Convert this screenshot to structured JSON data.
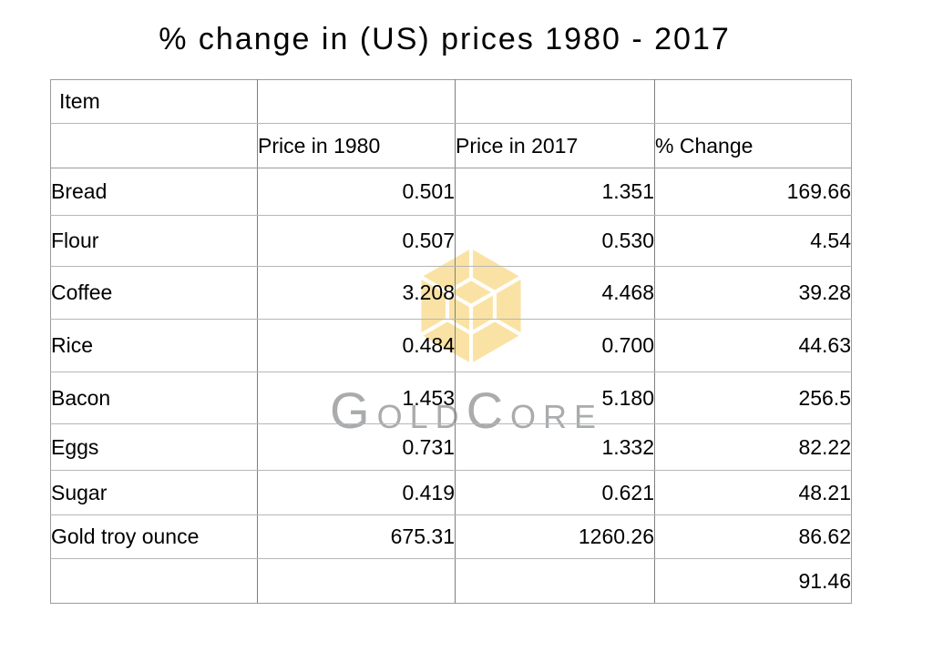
{
  "title": "% change in (US) prices 1980 - 2017",
  "watermark": {
    "brand": "GoldCore",
    "brand_seg_1": "G",
    "brand_seg_2": "OLD",
    "brand_seg_3": "C",
    "brand_seg_4": "ORE",
    "logo_gold_color": "#FAE2A4",
    "logo_line_color": "#FFFFFF",
    "brand_text_color": "#A9ABAD"
  },
  "chart_data": {
    "type": "table",
    "title": "% change in (US) prices 1980 - 2017",
    "header_row_1": [
      "Item",
      "",
      "",
      ""
    ],
    "header_row_2": [
      "",
      "Price in 1980",
      "Price in 2017",
      "% Change"
    ],
    "columns": [
      "Item",
      "Price in 1980",
      "Price in 2017",
      "% Change"
    ],
    "rows": [
      {
        "item": "Bread",
        "price_1980": "0.501",
        "price_2017": "1.351",
        "pct_change": "169.66"
      },
      {
        "item": "Flour",
        "price_1980": "0.507",
        "price_2017": "0.530",
        "pct_change": "4.54"
      },
      {
        "item": "Coffee",
        "price_1980": "3.208",
        "price_2017": "4.468",
        "pct_change": "39.28"
      },
      {
        "item": "Rice",
        "price_1980": "0.484",
        "price_2017": "0.700",
        "pct_change": "44.63"
      },
      {
        "item": "Bacon",
        "price_1980": "1.453",
        "price_2017": "5.180",
        "pct_change": "256.5"
      },
      {
        "item": "Eggs",
        "price_1980": "0.731",
        "price_2017": "1.332",
        "pct_change": "82.22"
      },
      {
        "item": "Sugar",
        "price_1980": "0.419",
        "price_2017": "0.621",
        "pct_change": "48.21"
      },
      {
        "item": "Gold troy ounce",
        "price_1980": "675.31",
        "price_2017": "1260.26",
        "pct_change": "86.62"
      },
      {
        "item": "",
        "price_1980": "",
        "price_2017": "",
        "pct_change": "91.46"
      }
    ]
  }
}
